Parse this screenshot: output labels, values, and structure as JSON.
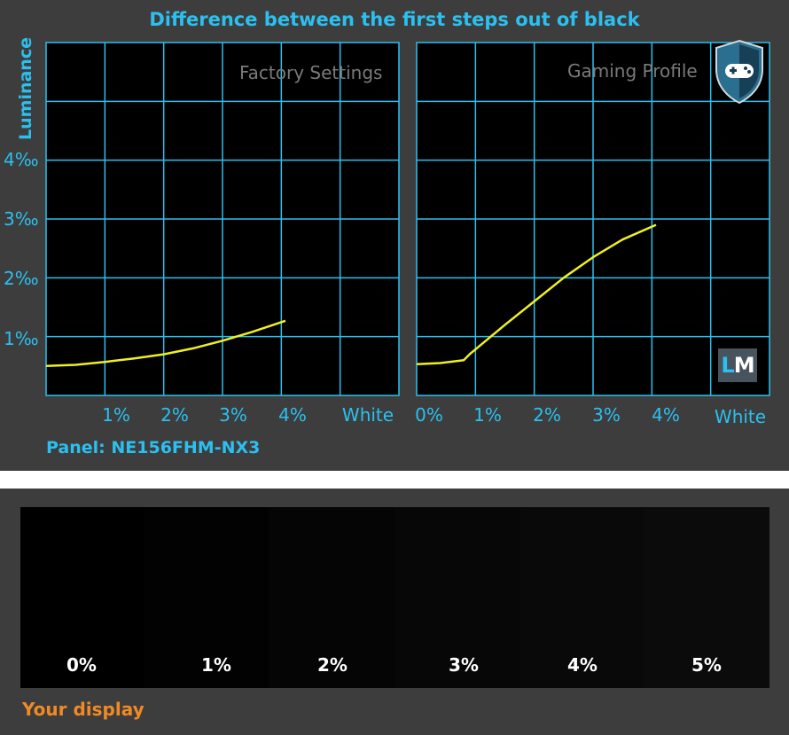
{
  "title": "Difference between the first steps out of black",
  "panel_text": "Panel: NE156FHM-NX3",
  "lm_logo": {
    "l": "L",
    "m": "M"
  },
  "colors": {
    "accent": "#2bc0f0",
    "curve": "#f0f020",
    "grid": "#2bc0f0",
    "bg": "#000000",
    "orange": "#f08a24"
  },
  "chart_data": [
    {
      "type": "line",
      "title": "Factory Settings",
      "ylabel": "Luminance",
      "xticks": [
        "1%",
        "2%",
        "3%",
        "4%",
        "White"
      ],
      "yticks": [
        "1‰",
        "2‰",
        "3‰",
        "4‰"
      ],
      "xlim": [
        0,
        6
      ],
      "ylim": [
        0,
        6
      ],
      "x": [
        0,
        0.5,
        1,
        1.5,
        2,
        2.5,
        3,
        3.5,
        4.07
      ],
      "y": [
        0.5,
        0.52,
        0.57,
        0.63,
        0.7,
        0.8,
        0.93,
        1.08,
        1.27
      ]
    },
    {
      "type": "line",
      "title": "Gaming Profile",
      "icon": "gamepad-shield-icon",
      "xticks": [
        "0%",
        "1%",
        "2%",
        "3%",
        "4%",
        "White"
      ],
      "xlim": [
        0,
        6
      ],
      "ylim": [
        0,
        6
      ],
      "x": [
        0,
        0.4,
        0.8,
        0.9,
        1.5,
        2,
        2.5,
        3,
        3.5,
        4.07
      ],
      "y": [
        0.53,
        0.55,
        0.6,
        0.7,
        1.2,
        1.6,
        2.0,
        2.35,
        2.65,
        2.9
      ]
    }
  ],
  "swatches": {
    "labels": [
      "0%",
      "1%",
      "2%",
      "3%",
      "4%",
      "5%"
    ],
    "levels_percent": [
      0,
      1,
      2,
      3,
      4,
      5
    ]
  },
  "your_display": "Your display"
}
